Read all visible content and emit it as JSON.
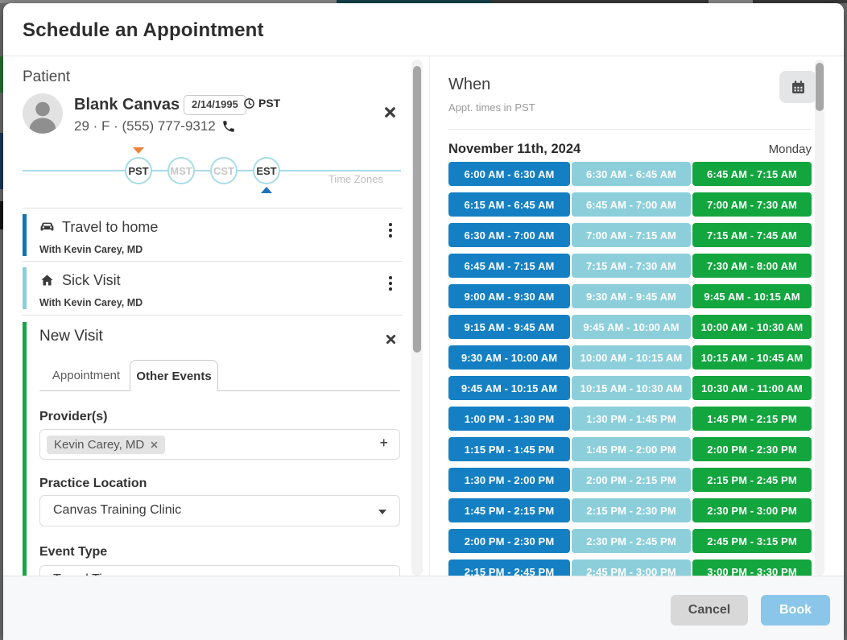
{
  "modal": {
    "title": "Schedule an Appointment"
  },
  "patient": {
    "section_label": "Patient",
    "name": "Blank Canvas",
    "dob": "2/14/1995",
    "timezone_abbr": "PST",
    "summary": "29 · F · (555) 777-9312",
    "avatar_icon": "person-silhouette-icon",
    "clock_icon": "clock-icon",
    "phone_icon": "phone-icon",
    "close_icon": "close-icon"
  },
  "timezone_slider": {
    "caption": "Time Zones",
    "zones": [
      {
        "label": "PST",
        "active": true,
        "marker": "orange-down"
      },
      {
        "label": "MST",
        "active": false,
        "marker": null
      },
      {
        "label": "CST",
        "active": false,
        "marker": null
      },
      {
        "label": "EST",
        "active": true,
        "marker": "blue-up"
      }
    ]
  },
  "events": [
    {
      "icon": "car-icon",
      "title": "Travel to home",
      "subtitle": "With Kevin Carey, MD",
      "accent_color": "#1173bd",
      "menu_icon": "kebab-menu-icon"
    },
    {
      "icon": "home-icon",
      "title": "Sick Visit",
      "subtitle": "With Kevin Carey, MD",
      "accent_color": "#8ccfdb",
      "menu_icon": "kebab-menu-icon"
    }
  ],
  "new_visit": {
    "title": "New Visit",
    "accent_color": "#16a546",
    "close_icon": "close-icon",
    "tabs": [
      {
        "label": "Appointment",
        "active": false
      },
      {
        "label": "Other Events",
        "active": true
      }
    ],
    "providers_label": "Provider(s)",
    "provider_chips": [
      {
        "label": "Kevin Carey, MD",
        "remove_icon": "x-icon"
      }
    ],
    "add_provider_label": "+",
    "practice_location_label": "Practice Location",
    "practice_location_value": "Canvas Training Clinic",
    "event_type_label": "Event Type",
    "event_type_value": "Travel Time"
  },
  "when_panel": {
    "title": "When",
    "subtitle": "Appt. times in PST",
    "calendar_icon": "calendar-icon",
    "date": "November 11th, 2024",
    "weekday": "Monday",
    "slot_column_colors": [
      "#1480c3",
      "#8ccfdb",
      "#13a53e"
    ],
    "slots": [
      [
        "6:00 AM - 6:30 AM",
        "6:30 AM - 6:45 AM",
        "6:45 AM - 7:15 AM"
      ],
      [
        "6:15 AM - 6:45 AM",
        "6:45 AM - 7:00 AM",
        "7:00 AM - 7:30 AM"
      ],
      [
        "6:30 AM - 7:00 AM",
        "7:00 AM - 7:15 AM",
        "7:15 AM - 7:45 AM"
      ],
      [
        "6:45 AM - 7:15 AM",
        "7:15 AM - 7:30 AM",
        "7:30 AM - 8:00 AM"
      ],
      [
        "9:00 AM - 9:30 AM",
        "9:30 AM - 9:45 AM",
        "9:45 AM - 10:15 AM"
      ],
      [
        "9:15 AM - 9:45 AM",
        "9:45 AM - 10:00 AM",
        "10:00 AM - 10:30 AM"
      ],
      [
        "9:30 AM - 10:00 AM",
        "10:00 AM - 10:15 AM",
        "10:15 AM - 10:45 AM"
      ],
      [
        "9:45 AM - 10:15 AM",
        "10:15 AM - 10:30 AM",
        "10:30 AM - 11:00 AM"
      ],
      [
        "1:00 PM - 1:30 PM",
        "1:30 PM - 1:45 PM",
        "1:45 PM - 2:15 PM"
      ],
      [
        "1:15 PM - 1:45 PM",
        "1:45 PM - 2:00 PM",
        "2:00 PM - 2:30 PM"
      ],
      [
        "1:30 PM - 2:00 PM",
        "2:00 PM - 2:15 PM",
        "2:15 PM - 2:45 PM"
      ],
      [
        "1:45 PM - 2:15 PM",
        "2:15 PM - 2:30 PM",
        "2:30 PM - 3:00 PM"
      ],
      [
        "2:00 PM - 2:30 PM",
        "2:30 PM - 2:45 PM",
        "2:45 PM - 3:15 PM"
      ],
      [
        "2:15 PM - 2:45 PM",
        "2:45 PM - 3:00 PM",
        "3:00 PM - 3:30 PM"
      ]
    ]
  },
  "footer": {
    "cancel_label": "Cancel",
    "book_label": "Book"
  }
}
